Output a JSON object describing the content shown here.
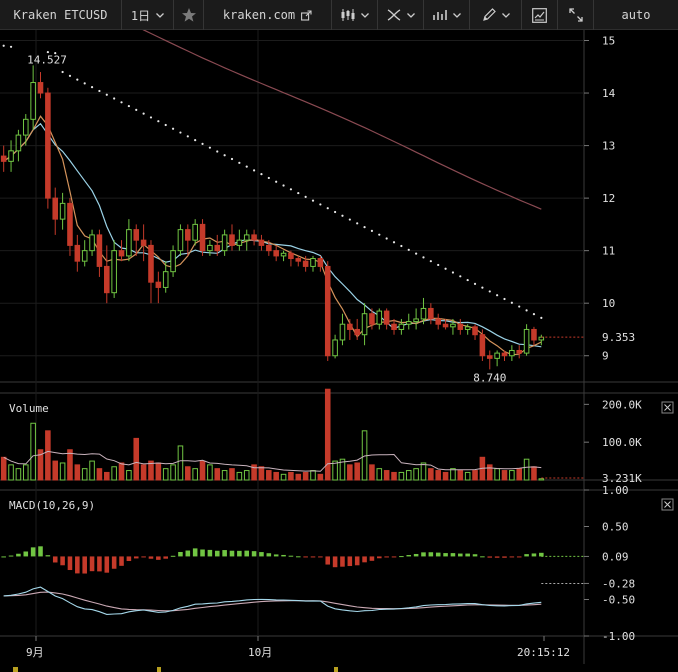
{
  "toolbar": {
    "symbol": "Kraken ETCUSD",
    "interval": "1日",
    "site": "kraken.com",
    "scale": "auto",
    "icons": [
      "chevron-down-icon",
      "star-icon",
      "external-link-icon",
      "candlestick-icon",
      "indicators-icon",
      "compare-icon",
      "pencil-icon",
      "settings-icon",
      "fullscreen-icon"
    ]
  },
  "colors": {
    "up": "#71c543",
    "down": "#c53a2a",
    "ma_short": "#d4935b",
    "ma_mid": "#9ad2e6",
    "ma_long": "#8a4a52",
    "sar": "#e8e8e8",
    "macd_line": "#a5d8ea",
    "signal_line": "#caa9b4"
  },
  "chart_data": [
    {
      "type": "candlestick",
      "panel": "price",
      "y_ticks": [
        "15",
        "14",
        "13",
        "12",
        "11",
        "10",
        "9"
      ],
      "ylim": [
        8.5,
        15.2
      ],
      "current_price": "9.353",
      "annotations": [
        {
          "text": "14.527",
          "value": 14.527,
          "index": 4
        },
        {
          "text": "8.740",
          "value": 8.74,
          "index": 70
        }
      ],
      "candles": [
        [
          12.8,
          13.0,
          12.5,
          12.7
        ],
        [
          12.7,
          13.1,
          12.5,
          12.9
        ],
        [
          12.9,
          13.3,
          12.7,
          13.2
        ],
        [
          13.2,
          13.6,
          13.0,
          13.5
        ],
        [
          13.5,
          14.527,
          13.3,
          14.2
        ],
        [
          14.2,
          14.4,
          13.9,
          14.0
        ],
        [
          14.0,
          14.1,
          11.8,
          12.0
        ],
        [
          12.0,
          12.2,
          11.3,
          11.6
        ],
        [
          11.6,
          12.1,
          11.4,
          11.9
        ],
        [
          11.9,
          12.0,
          10.9,
          11.1
        ],
        [
          11.1,
          11.3,
          10.6,
          10.8
        ],
        [
          10.8,
          11.2,
          10.7,
          11.0
        ],
        [
          11.0,
          11.4,
          10.9,
          11.3
        ],
        [
          11.3,
          11.4,
          10.5,
          10.7
        ],
        [
          10.7,
          11.1,
          10.0,
          10.2
        ],
        [
          10.2,
          11.2,
          10.1,
          11.0
        ],
        [
          11.0,
          11.2,
          10.8,
          10.9
        ],
        [
          10.9,
          11.6,
          10.8,
          11.4
        ],
        [
          11.4,
          11.5,
          10.9,
          11.2
        ],
        [
          11.2,
          11.5,
          10.8,
          11.1
        ],
        [
          11.1,
          11.2,
          10.0,
          10.4
        ],
        [
          10.4,
          10.6,
          10.0,
          10.3
        ],
        [
          10.3,
          10.8,
          10.2,
          10.6
        ],
        [
          10.6,
          11.1,
          10.5,
          11.0
        ],
        [
          11.0,
          11.5,
          10.9,
          11.4
        ],
        [
          11.4,
          11.5,
          10.9,
          11.2
        ],
        [
          11.2,
          11.6,
          11.1,
          11.5
        ],
        [
          11.5,
          11.6,
          10.9,
          11.0
        ],
        [
          11.0,
          11.2,
          10.9,
          11.1
        ],
        [
          11.1,
          11.3,
          10.9,
          11.0
        ],
        [
          11.0,
          11.4,
          10.9,
          11.3
        ],
        [
          11.3,
          11.5,
          11.0,
          11.1
        ],
        [
          11.1,
          11.4,
          11.0,
          11.2
        ],
        [
          11.2,
          11.4,
          11.0,
          11.3
        ],
        [
          11.3,
          11.4,
          11.1,
          11.2
        ],
        [
          11.2,
          11.3,
          11.0,
          11.1
        ],
        [
          11.1,
          11.2,
          10.9,
          11.0
        ],
        [
          11.0,
          11.1,
          10.8,
          10.9
        ],
        [
          10.9,
          11.0,
          10.8,
          10.95
        ],
        [
          10.95,
          11.0,
          10.7,
          10.85
        ],
        [
          10.85,
          10.9,
          10.7,
          10.8
        ],
        [
          10.8,
          10.9,
          10.6,
          10.7
        ],
        [
          10.7,
          10.9,
          10.6,
          10.85
        ],
        [
          10.85,
          10.9,
          10.6,
          10.7
        ],
        [
          10.7,
          10.8,
          8.9,
          9.0
        ],
        [
          9.0,
          9.4,
          8.95,
          9.3
        ],
        [
          9.3,
          9.8,
          9.2,
          9.6
        ],
        [
          9.6,
          9.7,
          9.3,
          9.5
        ],
        [
          9.5,
          9.7,
          9.3,
          9.4
        ],
        [
          9.4,
          10.0,
          9.2,
          9.8
        ],
        [
          9.8,
          9.9,
          9.5,
          9.6
        ],
        [
          9.6,
          9.9,
          9.5,
          9.85
        ],
        [
          9.85,
          9.9,
          9.5,
          9.6
        ],
        [
          9.6,
          9.7,
          9.4,
          9.5
        ],
        [
          9.5,
          9.7,
          9.4,
          9.6
        ],
        [
          9.6,
          9.8,
          9.5,
          9.65
        ],
        [
          9.65,
          9.9,
          9.5,
          9.7
        ],
        [
          9.7,
          10.1,
          9.6,
          9.9
        ],
        [
          9.9,
          10.0,
          9.6,
          9.7
        ],
        [
          9.7,
          9.8,
          9.5,
          9.6
        ],
        [
          9.6,
          9.7,
          9.5,
          9.55
        ],
        [
          9.55,
          9.7,
          9.4,
          9.6
        ],
        [
          9.6,
          9.7,
          9.4,
          9.5
        ],
        [
          9.5,
          9.6,
          9.4,
          9.55
        ],
        [
          9.55,
          9.6,
          9.3,
          9.4
        ],
        [
          9.4,
          9.5,
          8.9,
          9.0
        ],
        [
          9.0,
          9.1,
          8.74,
          8.95
        ],
        [
          8.95,
          9.1,
          8.8,
          9.05
        ],
        [
          9.05,
          9.1,
          8.9,
          9.0
        ],
        [
          9.0,
          9.2,
          8.9,
          9.1
        ],
        [
          9.1,
          9.2,
          8.95,
          9.05
        ],
        [
          9.05,
          9.6,
          9.0,
          9.5
        ],
        [
          9.5,
          9.55,
          9.2,
          9.3
        ],
        [
          9.3,
          9.4,
          9.2,
          9.353
        ]
      ]
    },
    {
      "type": "bar",
      "panel": "volume",
      "label": "Volume",
      "y_ticks": [
        "200.0K",
        "100.0K"
      ],
      "ylim": [
        0,
        230
      ],
      "current": "3.231K",
      "values": [
        60,
        40,
        30,
        40,
        150,
        80,
        130,
        50,
        45,
        80,
        40,
        30,
        50,
        30,
        20,
        35,
        45,
        25,
        110,
        40,
        50,
        45,
        30,
        40,
        90,
        35,
        30,
        50,
        40,
        30,
        25,
        30,
        20,
        25,
        40,
        35,
        25,
        20,
        15,
        20,
        15,
        20,
        25,
        15,
        240,
        50,
        55,
        40,
        45,
        130,
        40,
        30,
        25,
        20,
        20,
        25,
        30,
        45,
        30,
        25,
        20,
        30,
        25,
        20,
        25,
        60,
        40,
        30,
        25,
        25,
        30,
        55,
        35,
        3.231
      ]
    },
    {
      "type": "bar+line",
      "panel": "macd",
      "label": "MACD(10,26,9)",
      "y_ticks": [
        "1.00",
        "0.50",
        "0.09",
        "-0.28",
        "-0.50",
        "-1.00"
      ],
      "ylim": [
        -1.0,
        1.0
      ],
      "current_histogram": "0.09",
      "current_macd": "-0.28"
    }
  ],
  "time_axis": {
    "labels": [
      {
        "text": "9月",
        "index": 2
      },
      {
        "text": "10月",
        "index": 41
      },
      {
        "text": "20:15:12",
        "index": 73
      }
    ]
  }
}
